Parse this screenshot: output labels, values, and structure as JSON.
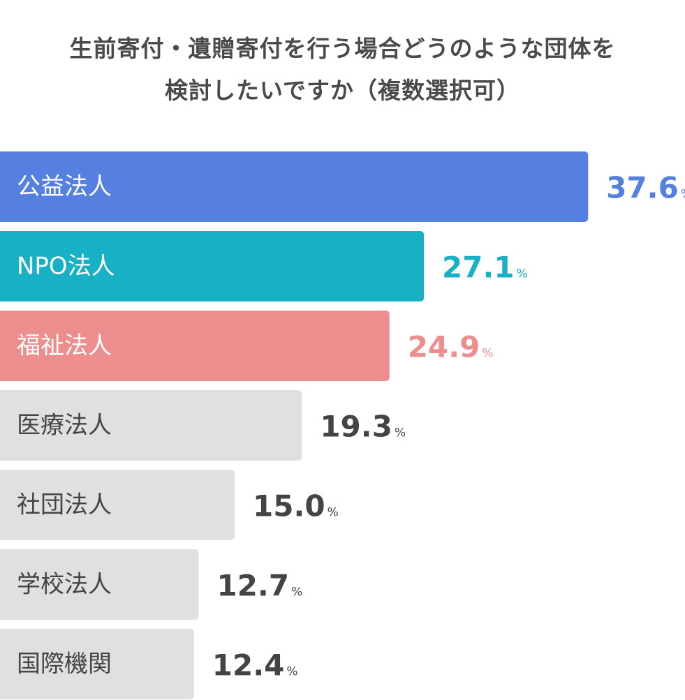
{
  "chart_data": {
    "type": "bar",
    "orientation": "horizontal",
    "title": "生前寄付・遺贈寄付を行う場合どうのような団体を検討したいですか（複数選択可）",
    "title_lines": [
      "生前寄付・遺贈寄付を行う場合どうのような団体を",
      "検討したいですか（複数選択可）"
    ],
    "categories": [
      "公益法人",
      "NPO法人",
      "福祉法人",
      "医療法人",
      "社団法人",
      "学校法人",
      "国際機関"
    ],
    "values": [
      37.6,
      27.1,
      24.9,
      19.3,
      15.0,
      12.7,
      12.4
    ],
    "value_labels": [
      "37.6",
      "27.1",
      "24.9",
      "19.3",
      "15.0",
      "12.7",
      "12.4"
    ],
    "unit": "%",
    "xlim": [
      0,
      40
    ],
    "grid": false,
    "legend": "none",
    "bar_colors": [
      "#5580e0",
      "#17b0c4",
      "#ec8e8e",
      "#e0e0e0",
      "#e0e0e0",
      "#e0e0e0",
      "#e0e0e0"
    ],
    "label_colors": [
      "#ffffff",
      "#ffffff",
      "#ffffff",
      "#444444",
      "#444444",
      "#444444",
      "#444444"
    ],
    "value_colors": [
      "#5580e0",
      "#17b0c4",
      "#ec8e8e",
      "#444444",
      "#444444",
      "#444444",
      "#444444"
    ]
  }
}
